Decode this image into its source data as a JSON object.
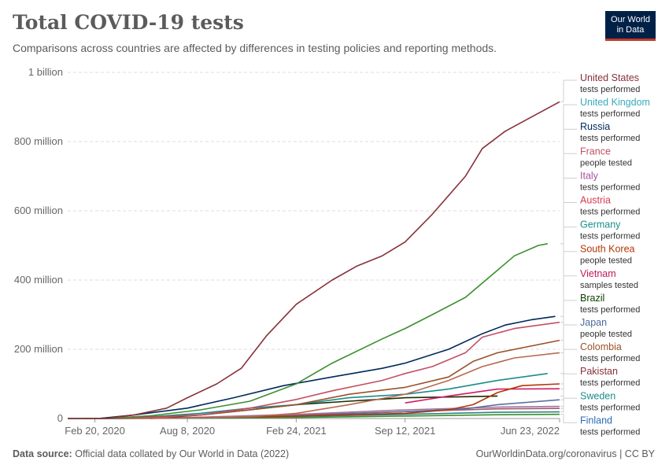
{
  "header": {
    "title": "Total COVID-19 tests",
    "subtitle": "Comparisons across countries are affected by differences in testing policies and reporting methods.",
    "logo_line1": "Our World",
    "logo_line2": "in Data"
  },
  "footer": {
    "source_label": "Data source:",
    "source_text": "Official data collated by Our World in Data (2022)",
    "right_text": "OurWorldinData.org/coronavirus | CC BY"
  },
  "chart_data": {
    "type": "line",
    "x_start": "2020-01-01",
    "x_end": "2022-06-23",
    "ylim": [
      0,
      1000000000
    ],
    "grid": true,
    "x_ticks": [
      {
        "date": "2020-02-20",
        "label": "Feb 20, 2020"
      },
      {
        "date": "2020-08-08",
        "label": "Aug 8, 2020"
      },
      {
        "date": "2021-02-24",
        "label": "Feb 24, 2021"
      },
      {
        "date": "2021-09-12",
        "label": "Sep 12, 2021"
      },
      {
        "date": "2022-06-23",
        "label": "Jun 23, 2022"
      }
    ],
    "y_ticks": [
      {
        "value": 0,
        "label": "0"
      },
      {
        "value": 200000000,
        "label": "200 million"
      },
      {
        "value": 400000000,
        "label": "400 million"
      },
      {
        "value": 600000000,
        "label": "600 million"
      },
      {
        "value": 800000000,
        "label": "800 million"
      },
      {
        "value": 1000000000,
        "label": "1 billion"
      }
    ],
    "series": [
      {
        "name": "United States",
        "unit": "tests performed",
        "color": "#883039",
        "points": [
          [
            "2020-01-01",
            0
          ],
          [
            "2020-02-20",
            0
          ],
          [
            "2020-03-15",
            1000000
          ],
          [
            "2020-05-01",
            10000000
          ],
          [
            "2020-07-01",
            30000000
          ],
          [
            "2020-08-08",
            60000000
          ],
          [
            "2020-10-01",
            100000000
          ],
          [
            "2020-11-15",
            145000000
          ],
          [
            "2021-01-01",
            240000000
          ],
          [
            "2021-02-24",
            330000000
          ],
          [
            "2021-05-01",
            400000000
          ],
          [
            "2021-06-15",
            440000000
          ],
          [
            "2021-08-01",
            470000000
          ],
          [
            "2021-09-12",
            510000000
          ],
          [
            "2021-11-01",
            590000000
          ],
          [
            "2022-01-01",
            700000000
          ],
          [
            "2022-02-01",
            780000000
          ],
          [
            "2022-03-15",
            830000000
          ],
          [
            "2022-05-01",
            870000000
          ],
          [
            "2022-06-23",
            915000000
          ]
        ]
      },
      {
        "name": "United Kingdom",
        "unit": "tests performed",
        "color": "#38aaba",
        "line_color": "#3c8e2f",
        "points": [
          [
            "2020-01-01",
            0
          ],
          [
            "2020-03-15",
            500000
          ],
          [
            "2020-06-01",
            8000000
          ],
          [
            "2020-09-01",
            25000000
          ],
          [
            "2020-12-01",
            50000000
          ],
          [
            "2021-02-24",
            100000000
          ],
          [
            "2021-05-01",
            160000000
          ],
          [
            "2021-08-01",
            230000000
          ],
          [
            "2021-09-12",
            260000000
          ],
          [
            "2021-11-01",
            300000000
          ],
          [
            "2022-01-01",
            350000000
          ],
          [
            "2022-02-15",
            410000000
          ],
          [
            "2022-04-01",
            470000000
          ],
          [
            "2022-05-15",
            500000000
          ],
          [
            "2022-06-01",
            505000000
          ]
        ]
      },
      {
        "name": "Russia",
        "unit": "tests performed",
        "color": "#00295b",
        "points": [
          [
            "2020-01-01",
            0
          ],
          [
            "2020-03-01",
            500000
          ],
          [
            "2020-05-01",
            10000000
          ],
          [
            "2020-08-08",
            30000000
          ],
          [
            "2020-11-01",
            60000000
          ],
          [
            "2021-02-01",
            95000000
          ],
          [
            "2021-05-01",
            120000000
          ],
          [
            "2021-08-01",
            145000000
          ],
          [
            "2021-09-12",
            160000000
          ],
          [
            "2021-12-01",
            200000000
          ],
          [
            "2022-02-01",
            245000000
          ],
          [
            "2022-03-15",
            270000000
          ],
          [
            "2022-05-01",
            285000000
          ],
          [
            "2022-06-15",
            295000000
          ]
        ]
      },
      {
        "name": "France",
        "unit": "people tested",
        "color": "#c15065",
        "points": [
          [
            "2020-04-01",
            0
          ],
          [
            "2020-06-01",
            3000000
          ],
          [
            "2020-09-01",
            10000000
          ],
          [
            "2020-12-01",
            30000000
          ],
          [
            "2021-02-24",
            55000000
          ],
          [
            "2021-05-01",
            80000000
          ],
          [
            "2021-08-01",
            110000000
          ],
          [
            "2021-09-12",
            130000000
          ],
          [
            "2021-11-01",
            150000000
          ],
          [
            "2022-01-01",
            190000000
          ],
          [
            "2022-02-01",
            235000000
          ],
          [
            "2022-04-01",
            260000000
          ],
          [
            "2022-06-23",
            278000000
          ]
        ]
      },
      {
        "name": "Italy",
        "unit": "tests performed",
        "color": "#a2559c",
        "line_color": "#9a5129",
        "points": [
          [
            "2020-02-20",
            0
          ],
          [
            "2020-05-01",
            2500000
          ],
          [
            "2020-09-01",
            10000000
          ],
          [
            "2020-12-01",
            25000000
          ],
          [
            "2021-02-24",
            40000000
          ],
          [
            "2021-06-01",
            70000000
          ],
          [
            "2021-09-12",
            90000000
          ],
          [
            "2021-12-01",
            120000000
          ],
          [
            "2022-01-15",
            165000000
          ],
          [
            "2022-03-01",
            190000000
          ],
          [
            "2022-06-23",
            226000000
          ]
        ]
      },
      {
        "name": "Austria",
        "unit": "tests performed",
        "color": "#d73c50",
        "line_color": "#b9694f",
        "points": [
          [
            "2020-03-01",
            0
          ],
          [
            "2020-09-01",
            2000000
          ],
          [
            "2020-12-01",
            5000000
          ],
          [
            "2021-02-24",
            15000000
          ],
          [
            "2021-06-01",
            40000000
          ],
          [
            "2021-09-12",
            70000000
          ],
          [
            "2021-12-01",
            110000000
          ],
          [
            "2022-02-01",
            150000000
          ],
          [
            "2022-04-01",
            175000000
          ],
          [
            "2022-06-23",
            190000000
          ]
        ]
      },
      {
        "name": "Germany",
        "unit": "tests performed",
        "color": "#188e8e",
        "line_color": "#1c8b8b",
        "points": [
          [
            "2020-03-01",
            0
          ],
          [
            "2020-06-01",
            5000000
          ],
          [
            "2020-09-01",
            15000000
          ],
          [
            "2020-12-01",
            30000000
          ],
          [
            "2021-02-24",
            40000000
          ],
          [
            "2021-06-01",
            60000000
          ],
          [
            "2021-09-12",
            70000000
          ],
          [
            "2021-12-01",
            85000000
          ],
          [
            "2022-03-01",
            110000000
          ],
          [
            "2022-06-01",
            130000000
          ]
        ]
      },
      {
        "name": "South Korea",
        "unit": "people tested",
        "color": "#b13507",
        "points": [
          [
            "2020-02-01",
            0
          ],
          [
            "2020-06-01",
            1000000
          ],
          [
            "2020-12-01",
            4000000
          ],
          [
            "2021-02-24",
            7000000
          ],
          [
            "2021-09-12",
            15000000
          ],
          [
            "2021-12-01",
            25000000
          ],
          [
            "2022-01-15",
            40000000
          ],
          [
            "2022-03-01",
            75000000
          ],
          [
            "2022-04-15",
            95000000
          ],
          [
            "2022-06-23",
            100000000
          ]
        ]
      },
      {
        "name": "Vietnam",
        "unit": "samples tested",
        "color": "#c2185b",
        "line_color": "#d31c62",
        "points": [
          [
            "2021-09-12",
            45000000
          ],
          [
            "2021-12-01",
            65000000
          ],
          [
            "2022-03-01",
            85000000
          ],
          [
            "2022-06-23",
            86000000
          ]
        ]
      },
      {
        "name": "Brazil",
        "unit": "tests performed",
        "color": "#0a3e00",
        "line_color": "#1c2c00",
        "points": [
          [
            "2020-06-01",
            0
          ],
          [
            "2020-09-01",
            10000000
          ],
          [
            "2020-12-01",
            25000000
          ],
          [
            "2021-02-24",
            40000000
          ],
          [
            "2021-06-01",
            50000000
          ],
          [
            "2021-09-12",
            60000000
          ],
          [
            "2022-01-01",
            63000000
          ],
          [
            "2022-03-01",
            65000000
          ]
        ]
      },
      {
        "name": "Japan",
        "unit": "people tested",
        "color": "#4c6a9c",
        "line_color": "#5b6fa2",
        "points": [
          [
            "2020-03-01",
            0
          ],
          [
            "2020-08-08",
            1000000
          ],
          [
            "2021-02-24",
            8000000
          ],
          [
            "2021-09-12",
            20000000
          ],
          [
            "2022-01-01",
            28000000
          ],
          [
            "2022-03-01",
            40000000
          ],
          [
            "2022-06-23",
            54000000
          ]
        ]
      },
      {
        "name": "Colombia",
        "unit": "tests performed",
        "color": "#9a5129",
        "line_color": "#a2749a",
        "points": [
          [
            "2020-03-01",
            0
          ],
          [
            "2020-08-08",
            3000000
          ],
          [
            "2021-02-24",
            12000000
          ],
          [
            "2021-09-12",
            25000000
          ],
          [
            "2022-03-01",
            33000000
          ],
          [
            "2022-06-23",
            35000000
          ]
        ]
      },
      {
        "name": "Pakistan",
        "unit": "tests performed",
        "color": "#883039",
        "line_color": "#a4566e",
        "points": [
          [
            "2020-03-01",
            0
          ],
          [
            "2020-08-08",
            2000000
          ],
          [
            "2021-02-24",
            10000000
          ],
          [
            "2021-09-12",
            20000000
          ],
          [
            "2022-03-01",
            28000000
          ],
          [
            "2022-06-23",
            29000000
          ]
        ]
      },
      {
        "name": "Sweden",
        "unit": "tests performed",
        "color": "#1c8b8b",
        "line_color": "#2d8585",
        "points": [
          [
            "2020-03-01",
            0
          ],
          [
            "2020-08-08",
            1000000
          ],
          [
            "2021-02-24",
            6000000
          ],
          [
            "2021-09-12",
            12000000
          ],
          [
            "2022-03-01",
            18000000
          ],
          [
            "2022-06-23",
            19000000
          ]
        ]
      },
      {
        "name": "Finland",
        "unit": "tests performed",
        "color": "#286bbb",
        "line_color": "#3c8e2f",
        "points": [
          [
            "2020-03-01",
            0
          ],
          [
            "2020-08-08",
            600000
          ],
          [
            "2021-02-24",
            3000000
          ],
          [
            "2021-09-12",
            7000000
          ],
          [
            "2022-03-01",
            11000000
          ],
          [
            "2022-06-23",
            12000000
          ]
        ]
      }
    ]
  }
}
